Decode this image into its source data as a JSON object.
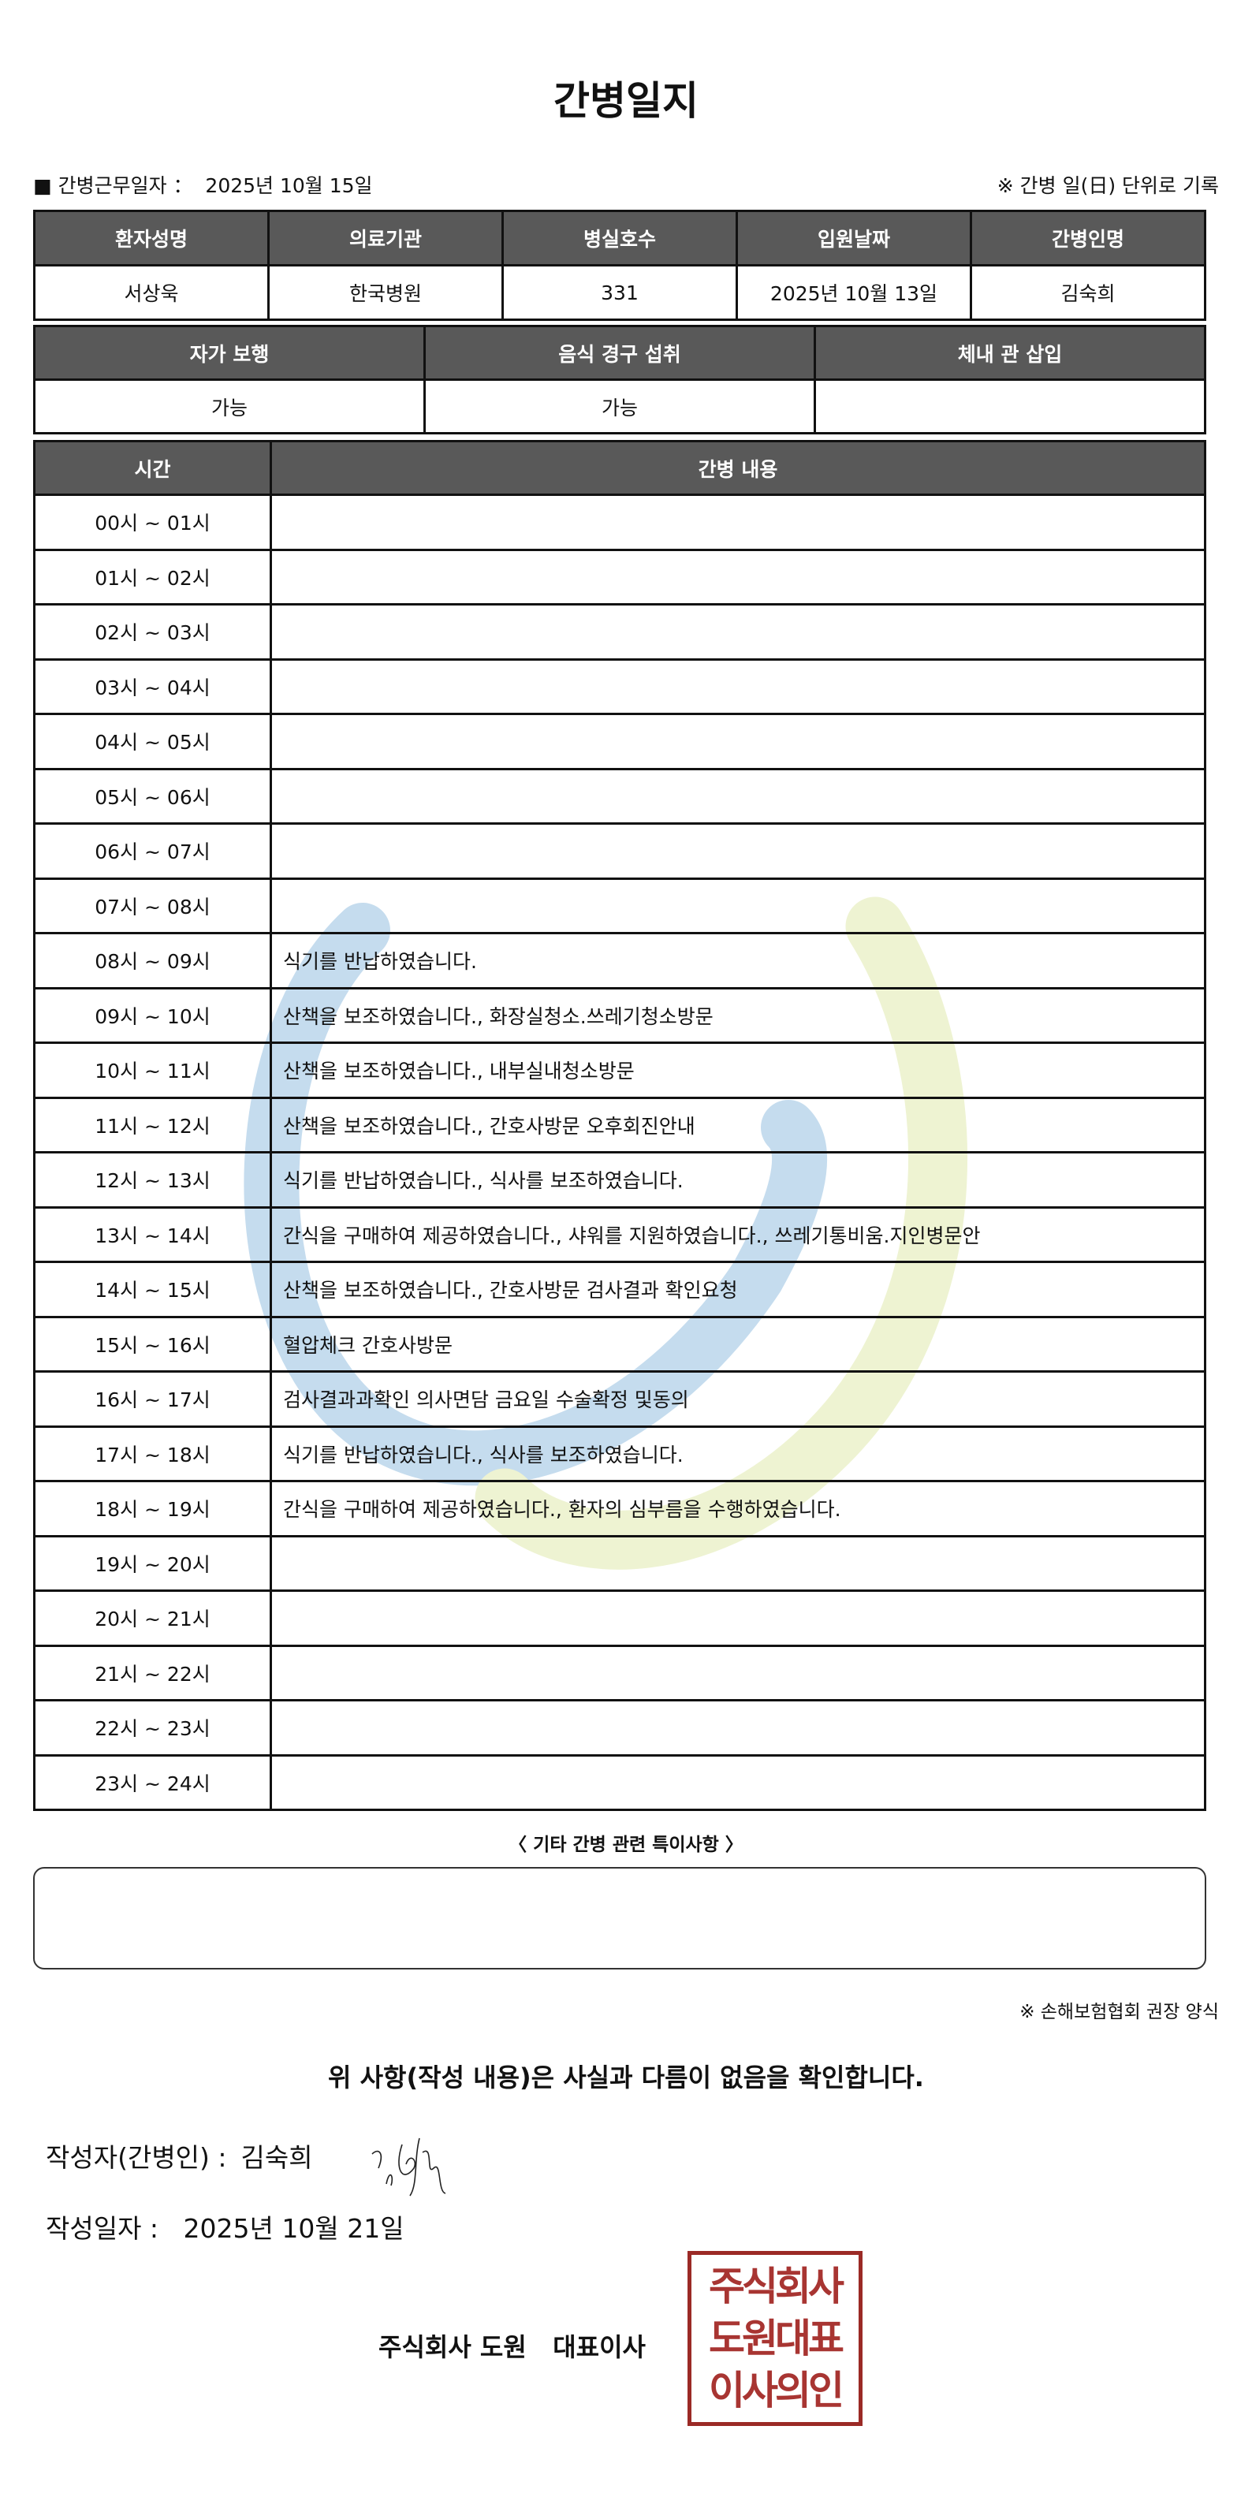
{
  "title": "간병일지",
  "info": {
    "work_date_label": "■ 간병근무일자 ：",
    "work_date": "2025년 10월 15일",
    "note": "※ 간병 일(日) 단위로 기록"
  },
  "patient_table": {
    "headers": [
      "환자성명",
      "의료기관",
      "병실호수",
      "입원날짜",
      "간병인명"
    ],
    "values": [
      "서상욱",
      "한국병원",
      "331",
      "2025년 10월 13일",
      "김숙희"
    ]
  },
  "status_table": {
    "headers": [
      "자가 보행",
      "음식 경구 섭취",
      "체내 관 삽입"
    ],
    "values": [
      "가능",
      "가능",
      ""
    ]
  },
  "log_table": {
    "headers": [
      "시간",
      "간병 내용"
    ],
    "rows": [
      {
        "time": "00시 ~ 01시",
        "content": ""
      },
      {
        "time": "01시 ~ 02시",
        "content": ""
      },
      {
        "time": "02시 ~ 03시",
        "content": ""
      },
      {
        "time": "03시 ~ 04시",
        "content": ""
      },
      {
        "time": "04시 ~ 05시",
        "content": ""
      },
      {
        "time": "05시 ~ 06시",
        "content": ""
      },
      {
        "time": "06시 ~ 07시",
        "content": ""
      },
      {
        "time": "07시 ~ 08시",
        "content": ""
      },
      {
        "time": "08시 ~ 09시",
        "content": "식기를 반납하였습니다."
      },
      {
        "time": "09시 ~ 10시",
        "content": "산책을 보조하였습니다., 화장실청소.쓰레기청소방문"
      },
      {
        "time": "10시 ~ 11시",
        "content": "산책을 보조하였습니다., 내부실내청소방문"
      },
      {
        "time": "11시 ~ 12시",
        "content": "산책을 보조하였습니다., 간호사방문 오후회진안내"
      },
      {
        "time": "12시 ~ 13시",
        "content": "식기를 반납하였습니다., 식사를 보조하였습니다."
      },
      {
        "time": "13시 ~ 14시",
        "content": "간식을 구매하여 제공하였습니다., 샤워를 지원하였습니다., 쓰레기통비움.지인병문안"
      },
      {
        "time": "14시 ~ 15시",
        "content": "산책을 보조하였습니다., 간호사방문 검사결과 확인요청"
      },
      {
        "time": "15시 ~ 16시",
        "content": "혈압체크 간호사방문"
      },
      {
        "time": "16시 ~ 17시",
        "content": "검사결과과확인 의사면담 금요일 수술확정 및동의"
      },
      {
        "time": "17시 ~ 18시",
        "content": "식기를 반납하였습니다., 식사를 보조하였습니다."
      },
      {
        "time": "18시 ~ 19시",
        "content": "간식을 구매하여 제공하였습니다., 환자의 심부름을 수행하였습니다."
      },
      {
        "time": "19시 ~ 20시",
        "content": ""
      },
      {
        "time": "20시 ~ 21시",
        "content": ""
      },
      {
        "time": "21시 ~ 22시",
        "content": ""
      },
      {
        "time": "22시 ~ 23시",
        "content": ""
      },
      {
        "time": "23시 ~ 24시",
        "content": ""
      }
    ]
  },
  "remarks": {
    "label": "〈 기타 간병 관련 특이사항 〉",
    "value": ""
  },
  "recommendation": "※ 손해보험협회 권장 양식",
  "confirmation": "위 사항(작성 내용)은 사실과 다름이 없음을 확인합니다.",
  "writer": {
    "label": "작성자(간병인) :",
    "name": "김숙희"
  },
  "written_date": {
    "label": "작성일자 :",
    "value": "2025년 10월 21일"
  },
  "company": "주식회사 도원   대표이사",
  "seal": {
    "lines": [
      "주식회사",
      "도원대표",
      "이사의인"
    ],
    "color": "#a83532"
  },
  "watermark_colors": {
    "blue": "#c5dcee",
    "yellow": "#eef3d2"
  }
}
